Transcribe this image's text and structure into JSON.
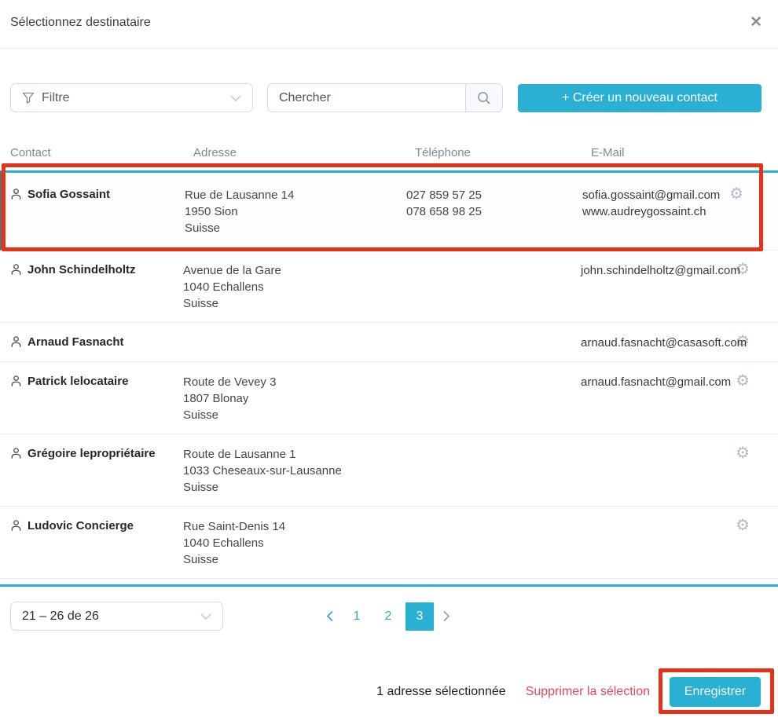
{
  "colors": {
    "accent": "#29b0d2",
    "annotation": "#e43318",
    "danger": "#e8445c"
  },
  "icons": {
    "gear": "⚙",
    "close": "✕"
  },
  "modal": {
    "title": "Sélectionnez destinataire"
  },
  "toolbar": {
    "filter_placeholder": "Filtre",
    "search_placeholder": "Chercher",
    "create_button": "+ Créer un nouveau contact"
  },
  "table": {
    "headers": [
      "Contact",
      "Adresse",
      "Téléphone",
      "E-Mail"
    ],
    "rows": [
      {
        "name": "Sofia Gossaint",
        "selected": true,
        "address": [
          "Rue de Lausanne 14",
          "1950 Sion",
          "Suisse"
        ],
        "phones": [
          "027 859 57 25",
          "078 658 98 25"
        ],
        "emails": [
          "sofia.gossaint@gmail.com",
          "www.audreygossaint.ch"
        ]
      },
      {
        "name": "John Schindelholtz",
        "selected": false,
        "address": [
          "Avenue de la Gare",
          "1040 Echallens",
          "Suisse"
        ],
        "phones": [],
        "emails": [
          "john.schindelholtz@gmail.com"
        ]
      },
      {
        "name": "Arnaud Fasnacht",
        "selected": false,
        "address": [],
        "phones": [],
        "emails": [
          "arnaud.fasnacht@casasoft.com"
        ]
      },
      {
        "name": "Patrick lelocataire",
        "selected": false,
        "address": [
          "Route de Vevey 3",
          "1807 Blonay",
          "Suisse"
        ],
        "phones": [],
        "emails": [
          "arnaud.fasnacht@gmail.com"
        ]
      },
      {
        "name": "Grégoire lepropriétaire",
        "selected": false,
        "address": [
          "Route de Lausanne 1",
          "1033 Cheseaux-sur-Lausanne",
          "Suisse"
        ],
        "phones": [],
        "emails": []
      },
      {
        "name": "Ludovic Concierge",
        "selected": false,
        "address": [
          "Rue Saint-Denis 14",
          "1040 Echallens",
          "Suisse"
        ],
        "phones": [],
        "emails": []
      }
    ]
  },
  "pagination": {
    "range_label": "21 – 26 de 26",
    "pages": [
      "1",
      "2",
      "3"
    ],
    "active_page": "3"
  },
  "footer": {
    "selection_text": "1 adresse sélectionnée",
    "delete_link": "Supprimer la sélection",
    "save_button": "Enregistrer"
  }
}
